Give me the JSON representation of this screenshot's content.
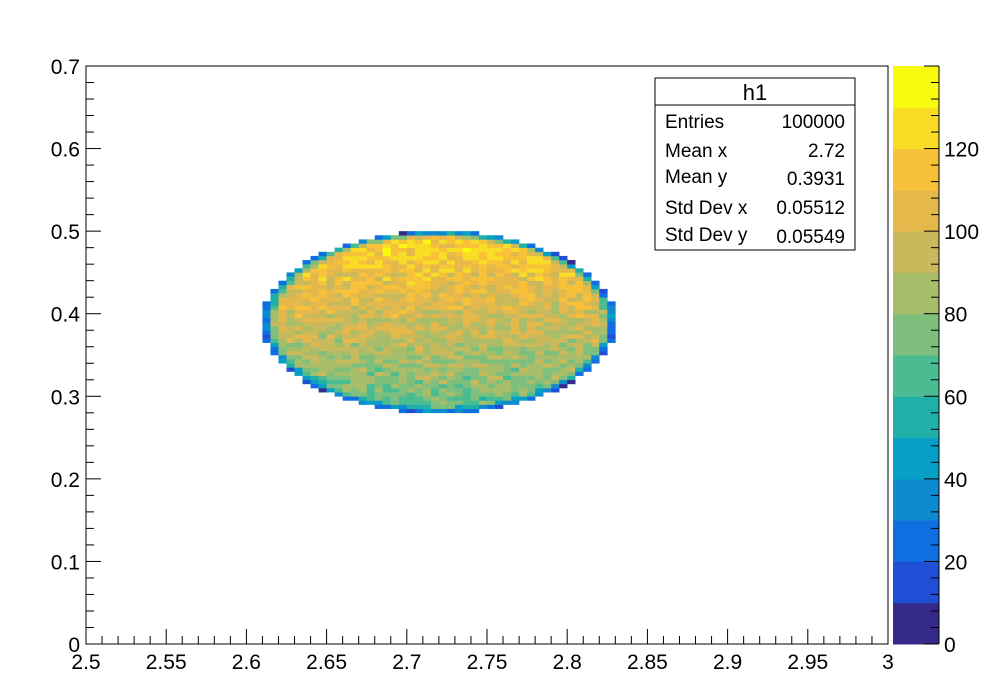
{
  "chart_data": {
    "type": "heatmap",
    "title": "",
    "xlabel": "",
    "ylabel": "",
    "xlim": [
      2.5,
      3.0
    ],
    "ylim": [
      0,
      0.7
    ],
    "zlim": [
      0,
      140
    ],
    "x_tick_labels": [
      "2.5",
      "2.55",
      "2.6",
      "2.65",
      "2.7",
      "2.75",
      "2.8",
      "2.85",
      "2.9",
      "2.95",
      "3"
    ],
    "y_tick_labels": [
      "0",
      "0.1",
      "0.2",
      "0.3",
      "0.4",
      "0.5",
      "0.6",
      "0.7"
    ],
    "z_tick_labels": [
      "0",
      "20",
      "40",
      "60",
      "80",
      "100",
      "120"
    ],
    "bins": {
      "x_min": 2.5,
      "x_max": 3.0,
      "nx": 100,
      "y_min": 0,
      "y_max": 0.7,
      "ny": 140
    },
    "distribution": {
      "shape": "filled ellipse",
      "center_x": 2.72,
      "center_y": 0.39,
      "half_width_x": 0.11,
      "half_height_y": 0.11,
      "count_at_top": 125,
      "count_at_bottom": 68,
      "count_at_edge": 15
    },
    "grid": false,
    "legend": "none",
    "palette": [
      "#352a87",
      "#1e4fd5",
      "#0f6ee0",
      "#0d8ad0",
      "#07a0c4",
      "#1fb0a8",
      "#4bbc92",
      "#7ebf7d",
      "#a8bd6a",
      "#c8b95c",
      "#e5b84c",
      "#f7c23a",
      "#f9dc25",
      "#f9fb0e"
    ],
    "stats_box": {
      "title": "h1",
      "rows": [
        {
          "label": "Entries",
          "value": "100000"
        },
        {
          "label": "Mean x",
          "value": "2.72"
        },
        {
          "label": "Mean y",
          "value": "0.3931"
        },
        {
          "label": "Std Dev x",
          "value": "0.05512"
        },
        {
          "label": "Std Dev y",
          "value": "0.05549"
        }
      ]
    }
  }
}
